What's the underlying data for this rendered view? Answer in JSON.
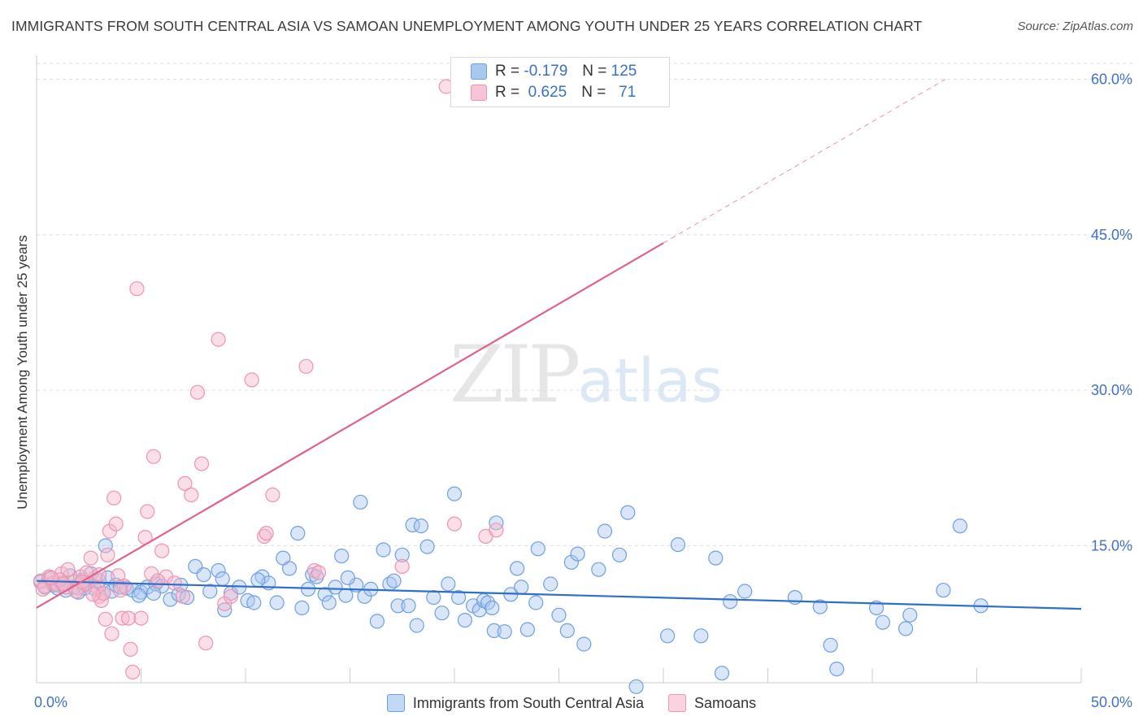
{
  "title": "IMMIGRANTS FROM SOUTH CENTRAL ASIA VS SAMOAN UNEMPLOYMENT AMONG YOUTH UNDER 25 YEARS CORRELATION CHART",
  "source": "Source: ZipAtlas.com",
  "watermark": {
    "zip": "ZIP",
    "atlas": "atlas"
  },
  "colors": {
    "blue_fill": "#a8c8f0",
    "blue_stroke": "#6f9fe0",
    "blue_line": "#2f6fcc",
    "pink_fill": "#f6b9cc",
    "pink_stroke": "#ec94b0",
    "pink_line": "#e0628c",
    "axis_text": "#3f72c6",
    "grid": "#dddddd"
  },
  "legend": {
    "rows": [
      {
        "r_label": "R =",
        "r_value": "-0.179",
        "n_label": "N =",
        "n_value": "125"
      },
      {
        "r_label": "R =",
        "r_value": " 0.625",
        "n_label": "N =",
        "n_value": "  71"
      }
    ]
  },
  "chart_data": {
    "type": "scatter",
    "ylabel": "Unemployment Among Youth under 25 years",
    "xlim": [
      0,
      50
    ],
    "ylim": [
      0,
      62
    ],
    "x_tick_labels": [
      "0.0%",
      "50.0%"
    ],
    "y_ticks": [
      {
        "value": 15,
        "label": "15.0%"
      },
      {
        "value": 30,
        "label": "30.0%"
      },
      {
        "value": 45,
        "label": "45.0%"
      },
      {
        "value": 60,
        "label": "60.0%"
      }
    ],
    "grid": "horizontal dashed",
    "legend_position": "bottom-center",
    "series": [
      {
        "name": "Immigrants from South Central Asia",
        "color": "#a8c8f0",
        "trend": {
          "x": [
            0,
            50
          ],
          "y": [
            11.6,
            8.9
          ],
          "dashed_extension": false
        },
        "points": [
          [
            0.2,
            11.5
          ],
          [
            0.4,
            11.0
          ],
          [
            0.6,
            11.8
          ],
          [
            0.8,
            11.2
          ],
          [
            1.0,
            10.9
          ],
          [
            1.2,
            11.4
          ],
          [
            1.4,
            10.7
          ],
          [
            1.6,
            12.1
          ],
          [
            1.8,
            11.0
          ],
          [
            2.0,
            10.5
          ],
          [
            2.2,
            11.7
          ],
          [
            2.4,
            11.3
          ],
          [
            2.6,
            12.3
          ],
          [
            2.8,
            10.8
          ],
          [
            3.0,
            11.6
          ],
          [
            3.2,
            10.4
          ],
          [
            3.4,
            11.9
          ],
          [
            3.3,
            15.0
          ],
          [
            3.6,
            10.6
          ],
          [
            3.8,
            11.2
          ],
          [
            4.0,
            11.0
          ],
          [
            4.3,
            10.9
          ],
          [
            4.6,
            10.7
          ],
          [
            5.0,
            10.5
          ],
          [
            5.3,
            11.0
          ],
          [
            5.7,
            11.3
          ],
          [
            6.0,
            11.1
          ],
          [
            6.4,
            9.8
          ],
          [
            6.8,
            10.3
          ],
          [
            7.2,
            10.0
          ],
          [
            7.6,
            13.0
          ],
          [
            8.0,
            12.2
          ],
          [
            8.3,
            10.6
          ],
          [
            8.7,
            12.6
          ],
          [
            8.9,
            11.8
          ],
          [
            9.3,
            10.4
          ],
          [
            9.7,
            11.0
          ],
          [
            10.1,
            9.7
          ],
          [
            10.4,
            9.5
          ],
          [
            10.8,
            12.0
          ],
          [
            11.1,
            11.4
          ],
          [
            11.5,
            9.5
          ],
          [
            11.8,
            13.8
          ],
          [
            12.1,
            12.8
          ],
          [
            12.5,
            16.2
          ],
          [
            12.7,
            9.0
          ],
          [
            13.0,
            10.8
          ],
          [
            13.2,
            12.2
          ],
          [
            13.4,
            12.0
          ],
          [
            13.8,
            10.3
          ],
          [
            14.0,
            9.5
          ],
          [
            14.3,
            11.0
          ],
          [
            14.6,
            14.0
          ],
          [
            14.8,
            10.2
          ],
          [
            15.3,
            11.2
          ],
          [
            15.5,
            19.2
          ],
          [
            15.7,
            10.1
          ],
          [
            16.0,
            10.8
          ],
          [
            16.3,
            7.7
          ],
          [
            16.6,
            14.6
          ],
          [
            16.9,
            11.3
          ],
          [
            17.1,
            11.6
          ],
          [
            17.3,
            9.2
          ],
          [
            17.5,
            14.1
          ],
          [
            17.8,
            9.2
          ],
          [
            18.0,
            17.0
          ],
          [
            18.2,
            7.3
          ],
          [
            18.4,
            16.9
          ],
          [
            18.7,
            14.9
          ],
          [
            19.0,
            10.0
          ],
          [
            19.4,
            8.5
          ],
          [
            19.7,
            11.3
          ],
          [
            20.2,
            10.0
          ],
          [
            20.5,
            7.8
          ],
          [
            20.9,
            9.2
          ],
          [
            21.2,
            8.8
          ],
          [
            21.4,
            9.7
          ],
          [
            21.6,
            9.5
          ],
          [
            21.8,
            9.0
          ],
          [
            21.9,
            6.8
          ],
          [
            22.4,
            6.7
          ],
          [
            22.7,
            10.3
          ],
          [
            23.0,
            12.8
          ],
          [
            23.2,
            11.0
          ],
          [
            23.5,
            6.9
          ],
          [
            23.9,
            9.5
          ],
          [
            24.0,
            14.7
          ],
          [
            24.6,
            11.3
          ],
          [
            25.0,
            8.3
          ],
          [
            25.4,
            6.8
          ],
          [
            25.6,
            13.4
          ],
          [
            25.9,
            14.2
          ],
          [
            26.2,
            5.5
          ],
          [
            26.9,
            12.7
          ],
          [
            27.2,
            16.4
          ],
          [
            27.9,
            14.1
          ],
          [
            28.3,
            18.2
          ],
          [
            28.7,
            1.4
          ],
          [
            30.2,
            6.3
          ],
          [
            30.7,
            15.1
          ],
          [
            31.8,
            6.3
          ],
          [
            32.5,
            13.8
          ],
          [
            32.8,
            2.7
          ],
          [
            33.2,
            9.6
          ],
          [
            33.9,
            10.6
          ],
          [
            36.3,
            10.0
          ],
          [
            37.5,
            9.1
          ],
          [
            38.0,
            5.4
          ],
          [
            38.3,
            3.1
          ],
          [
            40.2,
            9.0
          ],
          [
            40.5,
            7.6
          ],
          [
            41.6,
            7.0
          ],
          [
            41.8,
            8.3
          ],
          [
            43.4,
            10.7
          ],
          [
            44.2,
            16.9
          ],
          [
            45.2,
            9.2
          ],
          [
            20.0,
            20.0
          ],
          [
            22.0,
            17.2
          ],
          [
            14.9,
            11.9
          ],
          [
            10.6,
            11.7
          ],
          [
            9.0,
            8.8
          ],
          [
            5.6,
            10.4
          ],
          [
            6.9,
            11.2
          ],
          [
            4.9,
            10.2
          ],
          [
            2.3,
            10.9
          ]
        ]
      },
      {
        "name": "Samoans",
        "color": "#f6b9cc",
        "trend": {
          "x": [
            0,
            30
          ],
          "y": [
            9.0,
            44.2
          ],
          "dashed_extension": true,
          "dashed_to": [
            43.5,
            60.0
          ]
        },
        "points": [
          [
            0.2,
            11.6
          ],
          [
            0.4,
            11.1
          ],
          [
            0.6,
            12.0
          ],
          [
            0.8,
            11.4
          ],
          [
            1.0,
            11.2
          ],
          [
            1.2,
            12.3
          ],
          [
            1.5,
            12.7
          ],
          [
            1.8,
            11.5
          ],
          [
            2.0,
            10.9
          ],
          [
            2.1,
            12.0
          ],
          [
            2.3,
            11.3
          ],
          [
            2.6,
            13.8
          ],
          [
            2.8,
            11.9
          ],
          [
            3.0,
            10.1
          ],
          [
            3.1,
            9.7
          ],
          [
            3.3,
            7.9
          ],
          [
            3.6,
            6.5
          ],
          [
            3.4,
            14.1
          ],
          [
            3.5,
            16.4
          ],
          [
            3.7,
            19.6
          ],
          [
            3.8,
            17.1
          ],
          [
            3.9,
            12.1
          ],
          [
            4.1,
            8.0
          ],
          [
            4.4,
            8.0
          ],
          [
            4.5,
            5.0
          ],
          [
            4.6,
            2.8
          ],
          [
            4.8,
            39.8
          ],
          [
            5.0,
            8.0
          ],
          [
            5.2,
            15.8
          ],
          [
            5.3,
            18.3
          ],
          [
            5.6,
            23.6
          ],
          [
            6.0,
            14.5
          ],
          [
            6.2,
            12.0
          ],
          [
            7.1,
            21.0
          ],
          [
            7.4,
            19.9
          ],
          [
            7.7,
            29.8
          ],
          [
            7.9,
            22.9
          ],
          [
            8.1,
            5.6
          ],
          [
            8.7,
            34.9
          ],
          [
            9.0,
            9.4
          ],
          [
            9.3,
            10.1
          ],
          [
            10.3,
            31.0
          ],
          [
            10.9,
            15.9
          ],
          [
            11.3,
            19.9
          ],
          [
            11.0,
            16.2
          ],
          [
            12.9,
            32.3
          ],
          [
            13.3,
            12.6
          ],
          [
            13.5,
            12.4
          ],
          [
            17.5,
            13.0
          ],
          [
            19.6,
            59.3
          ],
          [
            20.0,
            17.1
          ],
          [
            21.5,
            15.9
          ],
          [
            22.0,
            16.5
          ],
          [
            1.4,
            11.0
          ],
          [
            2.4,
            12.4
          ],
          [
            0.3,
            10.8
          ],
          [
            1.1,
            11.7
          ],
          [
            1.9,
            10.6
          ],
          [
            2.9,
            11.0
          ],
          [
            4.2,
            11.1
          ],
          [
            3.2,
            10.4
          ],
          [
            5.5,
            12.3
          ],
          [
            7.0,
            10.1
          ],
          [
            2.2,
            11.5
          ],
          [
            1.3,
            11.3
          ],
          [
            6.6,
            11.4
          ],
          [
            0.7,
            11.9
          ],
          [
            4.0,
            10.7
          ],
          [
            5.8,
            11.6
          ],
          [
            2.7,
            10.3
          ],
          [
            3.0,
            12.2
          ]
        ]
      }
    ]
  },
  "bottom_legend": {
    "items": [
      {
        "label": "Immigrants from South Central Asia"
      },
      {
        "label": "Samoans"
      }
    ]
  }
}
